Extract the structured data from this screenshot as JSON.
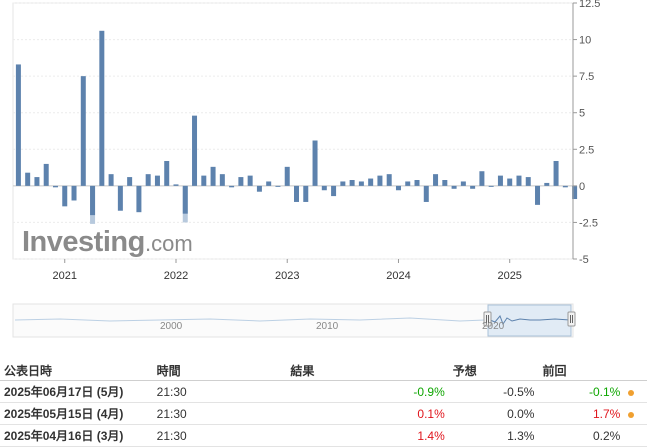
{
  "chart_data": {
    "type": "bar",
    "y_ticks": [
      "12.5",
      "10",
      "7.5",
      "5",
      "2.5",
      "0",
      "-2.5",
      "-5"
    ],
    "ylim": [
      -5,
      12.5
    ],
    "x_ticks": [
      "2021",
      "2022",
      "2023",
      "2024",
      "2025"
    ],
    "grid": true,
    "color": "#5d82ad",
    "highlight_color": "#b7c9dd",
    "series": [
      {
        "period": "2020-08",
        "value": 8.3
      },
      {
        "period": "2020-09",
        "value": 0.9
      },
      {
        "period": "2020-10",
        "value": 0.6
      },
      {
        "period": "2020-11",
        "value": 1.5
      },
      {
        "period": "2020-12",
        "value": -0.1
      },
      {
        "period": "2021-01",
        "value": -1.4
      },
      {
        "period": "2021-02",
        "value": -1.0
      },
      {
        "period": "2021-03",
        "value": 7.5
      },
      {
        "period": "2021-04",
        "value": -2.0,
        "marker": -2.6
      },
      {
        "period": "2021-05",
        "value": 10.6
      },
      {
        "period": "2021-06",
        "value": 0.8
      },
      {
        "period": "2021-07",
        "value": -1.7
      },
      {
        "period": "2021-08",
        "value": 0.6
      },
      {
        "period": "2021-09",
        "value": -1.8
      },
      {
        "period": "2021-10",
        "value": 0.8
      },
      {
        "period": "2021-11",
        "value": 0.7
      },
      {
        "period": "2021-12",
        "value": 1.7
      },
      {
        "period": "2022-01",
        "value": 0.1
      },
      {
        "period": "2022-02",
        "value": -1.9,
        "marker": -2.5
      },
      {
        "period": "2022-03",
        "value": 4.8
      },
      {
        "period": "2022-04",
        "value": 0.7
      },
      {
        "period": "2022-05",
        "value": 1.3
      },
      {
        "period": "2022-06",
        "value": 0.8
      },
      {
        "period": "2022-07",
        "value": -0.1
      },
      {
        "period": "2022-08",
        "value": 0.6
      },
      {
        "period": "2022-09",
        "value": 0.7
      },
      {
        "period": "2022-10",
        "value": -0.4
      },
      {
        "period": "2022-11",
        "value": 0.3
      },
      {
        "period": "2022-12",
        "value": 0.0
      },
      {
        "period": "2023-01",
        "value": 1.3
      },
      {
        "period": "2023-02",
        "value": -1.1
      },
      {
        "period": "2023-03",
        "value": -1.1
      },
      {
        "period": "2023-04",
        "value": 3.1
      },
      {
        "period": "2023-05",
        "value": -0.3
      },
      {
        "period": "2023-06",
        "value": -0.7
      },
      {
        "period": "2023-07",
        "value": 0.3
      },
      {
        "period": "2023-08",
        "value": 0.4
      },
      {
        "period": "2023-09",
        "value": 0.3
      },
      {
        "period": "2023-10",
        "value": 0.5
      },
      {
        "period": "2023-11",
        "value": 0.7
      },
      {
        "period": "2023-12",
        "value": 0.8
      },
      {
        "period": "2024-01",
        "value": -0.3
      },
      {
        "period": "2024-02",
        "value": 0.3
      },
      {
        "period": "2024-03",
        "value": 0.4
      },
      {
        "period": "2024-04",
        "value": -1.1
      },
      {
        "period": "2024-05",
        "value": 0.8
      },
      {
        "period": "2024-06",
        "value": 0.4
      },
      {
        "period": "2024-07",
        "value": -0.2
      },
      {
        "period": "2024-08",
        "value": 0.3
      },
      {
        "period": "2024-09",
        "value": -0.2
      },
      {
        "period": "2024-10",
        "value": 1.0
      },
      {
        "period": "2024-11",
        "value": 0.0
      },
      {
        "period": "2024-12",
        "value": 0.7
      },
      {
        "period": "2025-01",
        "value": 0.5
      },
      {
        "period": "2025-02",
        "value": 0.7
      },
      {
        "period": "2025-03",
        "value": 0.6
      },
      {
        "period": "2025-04",
        "value": -1.3
      },
      {
        "period": "2025-05",
        "value": 0.2
      },
      {
        "period": "2025-06",
        "value": 1.7
      },
      {
        "period": "2025-07",
        "value": -0.1
      },
      {
        "period": "2025-08",
        "value": -0.9
      }
    ]
  },
  "watermark": {
    "brand": "Investing",
    "suffix": ".com"
  },
  "navigator": {
    "labels": [
      "2000",
      "2010",
      "2020"
    ]
  },
  "table": {
    "headers": {
      "date": "公表日時",
      "time": "時間",
      "actual": "結果",
      "forecast": "予想",
      "previous": "前回"
    },
    "rows": [
      {
        "date": "2025年06月17日 (5月)",
        "time": "21:30",
        "actual": "-0.9%",
        "actual_status": "pos",
        "forecast": "-0.5%",
        "previous": "-0.1%",
        "previous_status": "pos"
      },
      {
        "date": "2025年05月15日 (4月)",
        "time": "21:30",
        "actual": "0.1%",
        "actual_status": "neg",
        "forecast": "0.0%",
        "previous": "1.7%",
        "previous_status": "neg"
      },
      {
        "date": "2025年04月16日 (3月)",
        "time": "21:30",
        "actual": "1.4%",
        "actual_status": "neg",
        "forecast": "1.3%",
        "previous": "0.2%",
        "previous_status": "neu"
      }
    ]
  }
}
